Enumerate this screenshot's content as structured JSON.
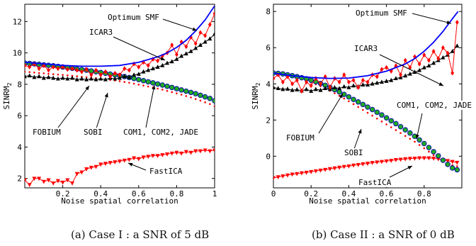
{
  "chart_data": [
    {
      "type": "line",
      "panel": "a",
      "caption": "(a) Case I : a SNR of 5 dB",
      "xlabel": "Noise spatial correlation",
      "ylabel": "SINRM",
      "ylabel_sub": "2",
      "xlim": [
        0,
        1
      ],
      "ylim": [
        1.4,
        13.1
      ],
      "xticks": [
        0.2,
        0.4,
        0.6,
        0.8,
        1
      ],
      "xtick_labels": [
        "0.2",
        "0.4",
        "0.6",
        "0.8",
        "1"
      ],
      "yticks": [
        2,
        4,
        6,
        8,
        10,
        12
      ],
      "ytick_labels": [
        "2",
        "4",
        "6",
        "8",
        "10",
        "12"
      ],
      "grid": false,
      "series": [
        {
          "name": "Optimum SMF",
          "color": "#0000ff",
          "marker": "none",
          "x": [
            0,
            0.1,
            0.2,
            0.3,
            0.4,
            0.5,
            0.6,
            0.7,
            0.75,
            0.8,
            0.85,
            0.9,
            0.95,
            1.0
          ],
          "y": [
            9.4,
            9.3,
            9.2,
            9.15,
            9.15,
            9.2,
            9.4,
            9.75,
            10.0,
            10.35,
            10.8,
            11.4,
            12.1,
            13.0
          ]
        },
        {
          "name": "ICAR3",
          "color": "#ff0000",
          "marker": "diamond",
          "x": [
            0,
            0.025,
            0.05,
            0.075,
            0.1,
            0.125,
            0.15,
            0.175,
            0.2,
            0.225,
            0.25,
            0.275,
            0.3,
            0.325,
            0.35,
            0.375,
            0.4,
            0.425,
            0.45,
            0.475,
            0.5,
            0.525,
            0.55,
            0.575,
            0.6,
            0.625,
            0.65,
            0.675,
            0.7,
            0.725,
            0.75,
            0.775,
            0.8,
            0.825,
            0.85,
            0.875,
            0.9,
            0.925,
            0.95,
            0.975,
            1.0
          ],
          "y": [
            9.2,
            9.1,
            9.3,
            9.0,
            9.2,
            8.9,
            9.1,
            9.0,
            9.1,
            8.95,
            9.0,
            8.9,
            8.8,
            8.95,
            8.6,
            8.9,
            8.6,
            8.8,
            8.5,
            8.7,
            8.6,
            9.0,
            8.9,
            9.3,
            9.1,
            9.4,
            9.2,
            9.6,
            9.5,
            9.8,
            10.0,
            10.5,
            9.9,
            10.7,
            10.4,
            11.0,
            10.6,
            11.3,
            11.1,
            11.8,
            12.5
          ]
        },
        {
          "name": "FOBIUM",
          "color": "#000000",
          "marker": "triangle-up",
          "x": [
            0,
            0.025,
            0.05,
            0.075,
            0.1,
            0.125,
            0.15,
            0.175,
            0.2,
            0.225,
            0.25,
            0.275,
            0.3,
            0.325,
            0.35,
            0.375,
            0.4,
            0.425,
            0.45,
            0.475,
            0.5,
            0.525,
            0.55,
            0.575,
            0.6,
            0.625,
            0.65,
            0.675,
            0.7,
            0.725,
            0.75,
            0.775,
            0.8,
            0.825,
            0.85,
            0.875,
            0.9,
            0.925,
            0.95,
            0.975,
            1.0
          ],
          "y": [
            8.5,
            8.55,
            8.45,
            8.5,
            8.4,
            8.45,
            8.4,
            8.35,
            8.4,
            8.35,
            8.4,
            8.3,
            8.35,
            8.3,
            8.35,
            8.3,
            8.35,
            8.3,
            8.4,
            8.35,
            8.4,
            8.5,
            8.45,
            8.6,
            8.65,
            8.8,
            8.9,
            9.0,
            9.1,
            9.2,
            9.35,
            9.45,
            9.6,
            9.8,
            9.95,
            10.1,
            10.3,
            10.5,
            10.7,
            10.9,
            11.2
          ]
        },
        {
          "name": "SOBI",
          "color": "#008800",
          "marker": "circle",
          "x": [
            0,
            0.025,
            0.05,
            0.075,
            0.1,
            0.125,
            0.15,
            0.175,
            0.2,
            0.225,
            0.25,
            0.275,
            0.3,
            0.325,
            0.35,
            0.375,
            0.4,
            0.425,
            0.45,
            0.475,
            0.5,
            0.525,
            0.55,
            0.575,
            0.6,
            0.625,
            0.65,
            0.675,
            0.7,
            0.725,
            0.75,
            0.775,
            0.8,
            0.825,
            0.85,
            0.875,
            0.9,
            0.925,
            0.95,
            0.975,
            1.0
          ],
          "y": [
            9.35,
            9.33,
            9.3,
            9.27,
            9.24,
            9.21,
            9.18,
            9.14,
            9.1,
            9.06,
            9.02,
            8.98,
            8.94,
            8.9,
            8.85,
            8.8,
            8.75,
            8.7,
            8.65,
            8.6,
            8.55,
            8.49,
            8.43,
            8.37,
            8.3,
            8.23,
            8.16,
            8.09,
            8.02,
            7.95,
            7.87,
            7.8,
            7.72,
            7.64,
            7.56,
            7.48,
            7.4,
            7.3,
            7.2,
            7.1,
            6.95
          ]
        },
        {
          "name": "COM1, COM2, JADE",
          "color": "#ff0000",
          "marker": "dot",
          "x": [
            0,
            0.025,
            0.05,
            0.075,
            0.1,
            0.125,
            0.15,
            0.175,
            0.2,
            0.225,
            0.25,
            0.275,
            0.3,
            0.325,
            0.35,
            0.375,
            0.4,
            0.425,
            0.45,
            0.475,
            0.5,
            0.525,
            0.55,
            0.575,
            0.6,
            0.625,
            0.65,
            0.675,
            0.7,
            0.725,
            0.75,
            0.775,
            0.8,
            0.825,
            0.85,
            0.875,
            0.9,
            0.925,
            0.95,
            0.975,
            1.0
          ],
          "y": [
            8.8,
            8.78,
            8.75,
            8.72,
            8.7,
            8.67,
            8.64,
            8.62,
            8.6,
            8.57,
            8.54,
            8.51,
            8.48,
            8.45,
            8.42,
            8.39,
            8.36,
            8.32,
            8.28,
            8.24,
            8.2,
            8.15,
            8.1,
            8.04,
            7.98,
            7.92,
            7.86,
            7.8,
            7.73,
            7.66,
            7.58,
            7.5,
            7.42,
            7.34,
            7.25,
            7.16,
            7.06,
            6.96,
            6.85,
            6.74,
            6.6
          ]
        },
        {
          "name": "FastICA",
          "color": "#ff0000",
          "marker": "triangle-down",
          "x": [
            0,
            0.025,
            0.05,
            0.075,
            0.1,
            0.125,
            0.15,
            0.175,
            0.2,
            0.225,
            0.25,
            0.275,
            0.3,
            0.325,
            0.35,
            0.375,
            0.4,
            0.425,
            0.45,
            0.475,
            0.5,
            0.525,
            0.55,
            0.575,
            0.6,
            0.625,
            0.65,
            0.675,
            0.7,
            0.725,
            0.75,
            0.775,
            0.8,
            0.825,
            0.85,
            0.875,
            0.9,
            0.925,
            0.95,
            0.975,
            1.0
          ],
          "y": [
            1.9,
            1.6,
            2.0,
            2.0,
            1.8,
            1.9,
            1.7,
            1.85,
            1.75,
            1.9,
            1.7,
            2.3,
            2.4,
            2.6,
            2.7,
            2.75,
            2.9,
            2.95,
            3.0,
            3.05,
            3.1,
            3.15,
            3.2,
            3.3,
            3.25,
            3.35,
            3.4,
            3.45,
            3.45,
            3.5,
            3.55,
            3.6,
            3.65,
            3.6,
            3.7,
            3.65,
            3.75,
            3.75,
            3.8,
            3.75,
            3.8
          ]
        }
      ],
      "annotations": [
        "Optimum SMF",
        "ICAR3",
        "FOBIUM",
        "SOBI",
        "COM1, COM2, JADE",
        "FastICA"
      ]
    },
    {
      "type": "line",
      "panel": "b",
      "caption": "(b) Case II : a SNR of 0 dB",
      "xlabel": "Noise spatial correlation",
      "ylabel": "SINRM",
      "ylabel_sub": "2",
      "xlim": [
        0,
        1
      ],
      "ylim": [
        -1.75,
        8.4
      ],
      "xticks": [
        0,
        0.2,
        0.4,
        0.6,
        0.8
      ],
      "xtick_labels": [
        "0",
        "0.2",
        "0.4",
        "0.6",
        "0.8"
      ],
      "yticks": [
        0,
        2,
        4,
        6,
        8
      ],
      "ytick_labels": [
        "0",
        "2",
        "4",
        "6",
        "8"
      ],
      "grid": false,
      "series": [
        {
          "name": "Optimum SMF",
          "color": "#0000ff",
          "marker": "none",
          "x": [
            0,
            0.1,
            0.2,
            0.3,
            0.4,
            0.5,
            0.6,
            0.7,
            0.75,
            0.8,
            0.85,
            0.9,
            0.95,
            0.98
          ],
          "y": [
            4.6,
            4.45,
            4.35,
            4.3,
            4.32,
            4.45,
            4.7,
            5.1,
            5.4,
            5.8,
            6.3,
            6.9,
            7.6,
            8.0
          ]
        },
        {
          "name": "ICAR3",
          "color": "#ff0000",
          "marker": "diamond",
          "x": [
            0,
            0.025,
            0.05,
            0.075,
            0.1,
            0.125,
            0.15,
            0.175,
            0.2,
            0.225,
            0.25,
            0.275,
            0.3,
            0.325,
            0.35,
            0.375,
            0.4,
            0.425,
            0.45,
            0.475,
            0.5,
            0.525,
            0.55,
            0.575,
            0.6,
            0.625,
            0.65,
            0.675,
            0.7,
            0.725,
            0.75,
            0.775,
            0.8,
            0.825,
            0.85,
            0.875,
            0.9,
            0.925,
            0.95,
            0.975
          ],
          "y": [
            4.3,
            4.5,
            4.1,
            4.4,
            4.0,
            4.2,
            3.6,
            4.1,
            3.9,
            4.3,
            4.0,
            4.4,
            3.8,
            4.3,
            4.1,
            4.5,
            4.1,
            4.2,
            3.8,
            4.2,
            4.1,
            4.5,
            4.4,
            4.8,
            4.9,
            4.7,
            5.0,
            4.5,
            5.3,
            4.9,
            5.5,
            5.1,
            5.6,
            5.3,
            5.8,
            5.4,
            6.0,
            5.7,
            4.6,
            7.4
          ]
        },
        {
          "name": "FOBIUM",
          "color": "#000000",
          "marker": "triangle-up",
          "x": [
            0,
            0.025,
            0.05,
            0.075,
            0.1,
            0.125,
            0.15,
            0.175,
            0.2,
            0.225,
            0.25,
            0.275,
            0.3,
            0.325,
            0.35,
            0.375,
            0.4,
            0.425,
            0.45,
            0.475,
            0.5,
            0.525,
            0.55,
            0.575,
            0.6,
            0.625,
            0.65,
            0.675,
            0.7,
            0.725,
            0.75,
            0.775,
            0.8,
            0.825,
            0.85,
            0.875,
            0.9,
            0.925,
            0.95,
            0.975
          ],
          "y": [
            3.8,
            3.75,
            3.7,
            3.72,
            3.65,
            3.68,
            3.62,
            3.7,
            3.6,
            3.7,
            3.65,
            3.75,
            3.7,
            3.8,
            3.75,
            3.85,
            3.8,
            3.9,
            3.85,
            3.95,
            3.95,
            4.0,
            4.05,
            4.1,
            4.15,
            4.2,
            4.3,
            4.35,
            4.45,
            4.55,
            4.65,
            4.75,
            4.9,
            5.0,
            5.15,
            5.3,
            5.45,
            5.6,
            5.8,
            6.1
          ]
        },
        {
          "name": "SOBI",
          "color": "#008800",
          "marker": "circle",
          "x": [
            0,
            0.025,
            0.05,
            0.075,
            0.1,
            0.125,
            0.15,
            0.175,
            0.2,
            0.225,
            0.25,
            0.275,
            0.3,
            0.325,
            0.35,
            0.375,
            0.4,
            0.425,
            0.45,
            0.475,
            0.5,
            0.525,
            0.55,
            0.575,
            0.6,
            0.625,
            0.65,
            0.675,
            0.7,
            0.725,
            0.75,
            0.775,
            0.8,
            0.825,
            0.85,
            0.875,
            0.9,
            0.925,
            0.95,
            0.975
          ],
          "y": [
            4.6,
            4.58,
            4.55,
            4.5,
            4.45,
            4.4,
            4.34,
            4.28,
            4.2,
            4.12,
            4.02,
            3.92,
            3.8,
            3.68,
            3.55,
            3.42,
            3.28,
            3.14,
            3.0,
            2.86,
            2.72,
            2.58,
            2.43,
            2.28,
            2.12,
            1.96,
            1.8,
            1.63,
            1.46,
            1.28,
            1.1,
            0.9,
            0.7,
            0.48,
            0.25,
            0.02,
            -0.22,
            -0.45,
            -0.65,
            -0.75
          ]
        },
        {
          "name": "COM1, COM2, JADE",
          "color": "#ff0000",
          "marker": "dot",
          "x": [
            0,
            0.025,
            0.05,
            0.075,
            0.1,
            0.125,
            0.15,
            0.175,
            0.2,
            0.225,
            0.25,
            0.275,
            0.3,
            0.325,
            0.35,
            0.375,
            0.4,
            0.425,
            0.45,
            0.475,
            0.5,
            0.525,
            0.55,
            0.575,
            0.6,
            0.625,
            0.65,
            0.675,
            0.7,
            0.725,
            0.75,
            0.775,
            0.8,
            0.825,
            0.85,
            0.875,
            0.9,
            0.925,
            0.95,
            0.975
          ],
          "y": [
            4.55,
            4.52,
            4.48,
            4.44,
            4.38,
            4.32,
            4.25,
            4.17,
            4.08,
            3.98,
            3.87,
            3.75,
            3.62,
            3.48,
            3.34,
            3.19,
            3.04,
            2.88,
            2.72,
            2.56,
            2.4,
            2.24,
            2.08,
            1.92,
            1.76,
            1.6,
            1.44,
            1.28,
            1.12,
            0.96,
            0.8,
            0.62,
            0.44,
            0.25,
            0.06,
            -0.14,
            -0.32,
            -0.45,
            -0.5,
            -0.55
          ]
        },
        {
          "name": "FastICA",
          "color": "#ff0000",
          "marker": "triangle-down",
          "x": [
            0,
            0.025,
            0.05,
            0.075,
            0.1,
            0.125,
            0.15,
            0.175,
            0.2,
            0.225,
            0.25,
            0.275,
            0.3,
            0.325,
            0.35,
            0.375,
            0.4,
            0.425,
            0.45,
            0.475,
            0.5,
            0.525,
            0.55,
            0.575,
            0.6,
            0.625,
            0.65,
            0.675,
            0.7,
            0.725,
            0.75,
            0.775,
            0.8,
            0.825,
            0.85,
            0.875,
            0.9,
            0.925,
            0.95,
            0.975
          ],
          "y": [
            -1.2,
            -1.15,
            -1.1,
            -1.05,
            -1.0,
            -0.97,
            -0.93,
            -0.9,
            -0.86,
            -0.82,
            -0.78,
            -0.74,
            -0.7,
            -0.66,
            -0.62,
            -0.58,
            -0.55,
            -0.5,
            -0.47,
            -0.43,
            -0.4,
            -0.36,
            -0.33,
            -0.3,
            -0.27,
            -0.24,
            -0.2,
            -0.18,
            -0.15,
            -0.13,
            -0.12,
            -0.1,
            -0.1,
            -0.1,
            -0.12,
            -0.15,
            -0.2,
            -0.25,
            -0.3,
            -0.35
          ]
        }
      ],
      "annotations": [
        "Optimum SMF",
        "ICAR3",
        "FOBIUM",
        "SOBI",
        "COM1, COM2, JADE",
        "FastICA"
      ]
    }
  ]
}
